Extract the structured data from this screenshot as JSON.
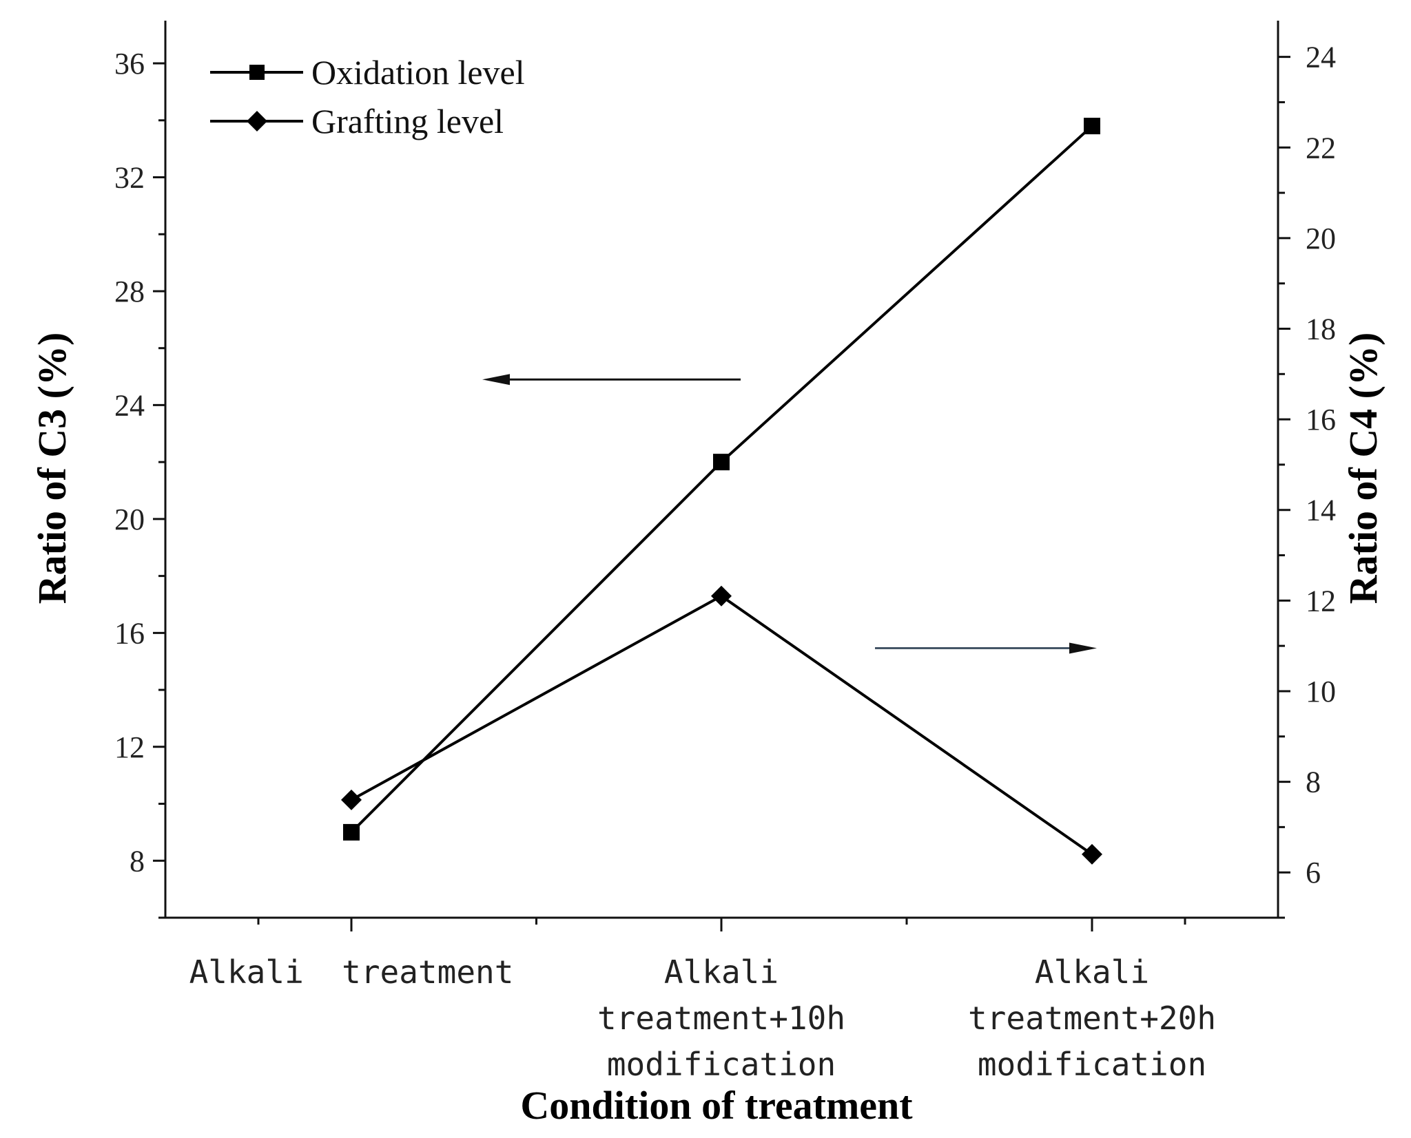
{
  "chart_data": {
    "type": "line",
    "categories": [
      [
        "Alkali  treatment"
      ],
      [
        "Alkali",
        "treatment+10h",
        "modification"
      ],
      [
        "Alkali",
        "treatment+20h",
        "modification"
      ]
    ],
    "xlabel": "Condition of treatment",
    "ylabel_left": "Ratio of C3 (%)",
    "ylabel_right": "Ratio of C4 (%)",
    "ylim_left": [
      6,
      37.5
    ],
    "yticks_left": [
      8,
      12,
      16,
      20,
      24,
      28,
      32,
      36
    ],
    "ylim_right": [
      5,
      24.8
    ],
    "yticks_right": [
      6,
      8,
      10,
      12,
      14,
      16,
      18,
      20,
      22,
      24
    ],
    "series": [
      {
        "name": "Oxidation level",
        "axis": "left",
        "marker": "square",
        "values": [
          9.0,
          22.0,
          33.8
        ]
      },
      {
        "name": "Grafting level",
        "axis": "right",
        "marker": "diamond",
        "values": [
          7.6,
          12.1,
          6.4
        ]
      }
    ],
    "annotations": [
      {
        "type": "arrow",
        "direction": "left",
        "meaning": "Oxidation level refers to left axis"
      },
      {
        "type": "arrow",
        "direction": "right",
        "meaning": "Grafting level refers to right axis"
      }
    ],
    "colors": {
      "line": "#000000",
      "arrow_right": "#445566"
    }
  }
}
